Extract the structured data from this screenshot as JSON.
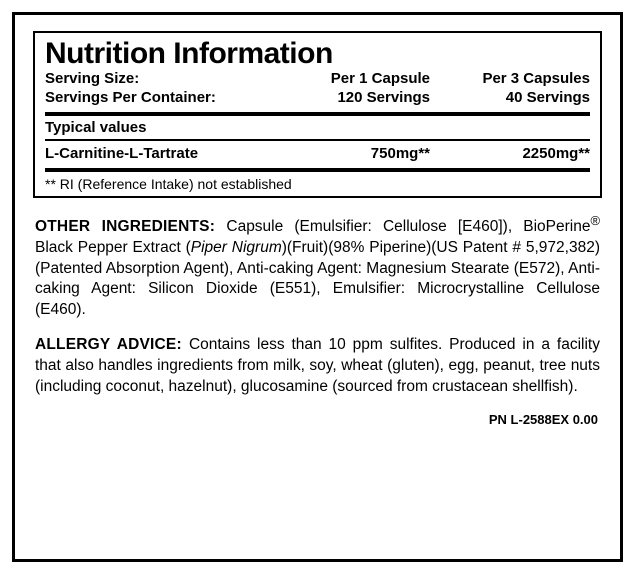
{
  "nutrition": {
    "title": "Nutrition Information",
    "serving_size_label": "Serving Size:",
    "serving_size_per1": "Per 1 Capsule",
    "serving_size_per3": "Per 3 Capsules",
    "servings_per_container_label": "Servings Per Container:",
    "servings_per1": "120 Servings",
    "servings_per3": "40 Servings",
    "typical_values_label": "Typical values",
    "item_name": "L-Carnitine-L-Tartrate",
    "item_per1": "750mg**",
    "item_per3": "2250mg**",
    "footnote": "** RI (Reference Intake) not established"
  },
  "other": {
    "label": "OTHER INGREDIENTS: ",
    "text_part1": "Capsule (Emulsifier: Cellulose [E460]), BioPerine",
    "reg": "®",
    "text_part2": " Black Pepper Extract (",
    "italic": "Piper Nigrum",
    "text_part3": ")(Fruit)(98% Piperine)(US Patent # 5,972,382)(Patented Absorption Agent), Anti-caking Agent: Magnesium Stearate (E572), Anti-caking Agent: Silicon Dioxide (E551), Emulsifier: Microcrystalline Cellulose (E460)."
  },
  "allergy": {
    "label": "ALLERGY ADVICE: ",
    "text": "Contains less than 10 ppm sulfites. Produced in a facility that also handles ingredients from milk, soy, wheat (gluten), egg, peanut, tree nuts (including coconut, hazelnut), glucosamine (sourced from crustacean shellfish)."
  },
  "pn": "PN L-2588EX 0.00"
}
